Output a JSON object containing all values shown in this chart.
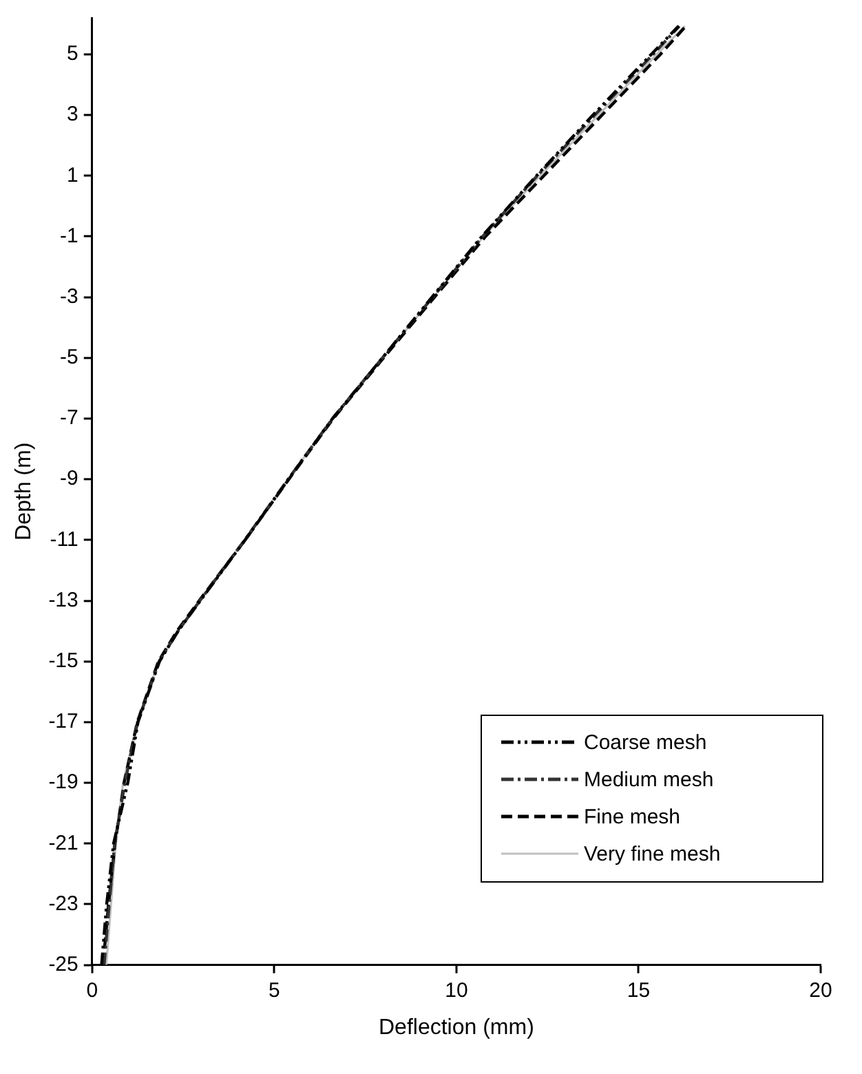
{
  "chart_data": {
    "type": "line",
    "xlabel": "Deflection (mm)",
    "ylabel": "Depth (m)",
    "xlim": [
      0,
      20
    ],
    "xticks": [
      0,
      5,
      10,
      15,
      20
    ],
    "ylim": [
      -25,
      6.2
    ],
    "yticks": [
      -25,
      -23,
      -21,
      -19,
      -17,
      -15,
      -13,
      -11,
      -9,
      -7,
      -5,
      -3,
      -1,
      1,
      3,
      5
    ],
    "grid": false,
    "legend": "bottom right",
    "marker": "none",
    "series": [
      {
        "name": "Coarse mesh",
        "color": "#000000",
        "line_style": "dotted",
        "x": [
          0.26,
          0.4,
          0.59,
          0.98,
          1.26,
          1.85,
          2.36,
          2.97,
          4.2,
          5.39,
          6.6,
          7.97,
          9.33,
          10.7,
          12.2,
          13.75,
          15.35,
          16.1
        ],
        "values": [
          -25,
          -23,
          -21,
          -19,
          -17,
          -15,
          -14,
          -13,
          -11,
          -9,
          -7,
          -5,
          -3,
          -1,
          1,
          3,
          5,
          5.93
        ]
      },
      {
        "name": "Medium mesh",
        "color": "#333333",
        "line_style": "dashed",
        "x": [
          0.33,
          0.47,
          0.62,
          0.9,
          1.25,
          1.84,
          2.36,
          2.96,
          4.19,
          5.38,
          6.6,
          7.97,
          9.35,
          10.72,
          12.22,
          13.8,
          15.4,
          16.12
        ],
        "values": [
          -25,
          -23,
          -21,
          -19,
          -17,
          -15,
          -14,
          -13,
          -11,
          -9,
          -7,
          -5,
          -3,
          -1,
          1,
          3,
          5,
          5.93
        ]
      },
      {
        "name": "Fine mesh",
        "color": "#000000",
        "line_style": "dashed",
        "x": [
          0.3,
          0.45,
          0.63,
          0.88,
          1.24,
          1.82,
          2.33,
          2.94,
          4.2,
          5.4,
          6.62,
          8.0,
          9.4,
          10.8,
          12.4,
          14.0,
          15.6,
          16.3
        ],
        "values": [
          -25,
          -23,
          -21,
          -19,
          -17,
          -15,
          -14,
          -13,
          -11,
          -9,
          -7,
          -5,
          -3,
          -1,
          1,
          3,
          5,
          5.93
        ]
      },
      {
        "name": "Very fine mesh",
        "color": "#c0c0c0",
        "line_style": "solid",
        "x": [
          0.39,
          0.52,
          0.65,
          0.85,
          1.24,
          1.83,
          2.36,
          2.95,
          4.19,
          5.38,
          6.6,
          7.98,
          9.37,
          10.75,
          12.3,
          13.9,
          15.5,
          16.27
        ],
        "values": [
          -25,
          -23,
          -21,
          -19,
          -17,
          -15,
          -14,
          -13,
          -11,
          -9,
          -7,
          -5,
          -3,
          -1,
          1,
          3,
          5,
          5.93
        ]
      }
    ]
  }
}
